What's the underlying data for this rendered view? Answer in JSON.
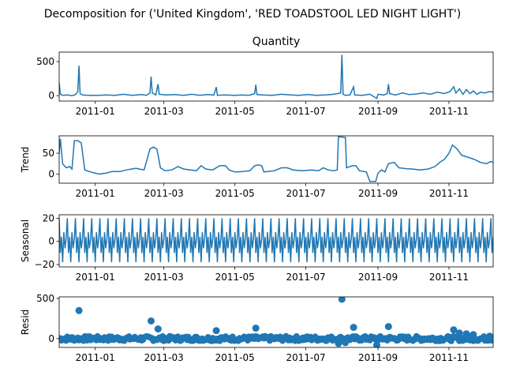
{
  "suptitle": "Decomposition for ('United Kingdom', 'RED TOADSTOOL LED NIGHT LIGHT')",
  "line_color": "#1f77b4",
  "chart_data": [
    {
      "type": "line",
      "title": "Quantity",
      "ylabel": "",
      "xlim": [
        "2010-12-01",
        "2011-12-09"
      ],
      "ylim": [
        -80,
        640
      ],
      "yticks": [
        0,
        500
      ],
      "xticks": [
        "2011-01",
        "2011-03",
        "2011-05",
        "2011-07",
        "2011-09",
        "2011-11"
      ],
      "series": [
        {
          "points": [
            [
              "2010-12-01",
              190
            ],
            [
              "2010-12-02",
              20
            ],
            [
              "2010-12-04",
              5
            ],
            [
              "2010-12-08",
              10
            ],
            [
              "2010-12-12",
              0
            ],
            [
              "2010-12-15",
              15
            ],
            [
              "2010-12-17",
              60
            ],
            [
              "2010-12-18",
              440
            ],
            [
              "2010-12-19",
              30
            ],
            [
              "2010-12-21",
              10
            ],
            [
              "2010-12-26",
              5
            ],
            [
              "2011-01-04",
              5
            ],
            [
              "2011-01-10",
              10
            ],
            [
              "2011-01-18",
              5
            ],
            [
              "2011-01-25",
              20
            ],
            [
              "2011-02-02",
              5
            ],
            [
              "2011-02-10",
              15
            ],
            [
              "2011-02-14",
              5
            ],
            [
              "2011-02-17",
              40
            ],
            [
              "2011-02-18",
              280
            ],
            [
              "2011-02-19",
              40
            ],
            [
              "2011-02-22",
              10
            ],
            [
              "2011-02-24",
              170
            ],
            [
              "2011-02-25",
              20
            ],
            [
              "2011-03-03",
              10
            ],
            [
              "2011-03-10",
              15
            ],
            [
              "2011-03-18",
              5
            ],
            [
              "2011-03-25",
              20
            ],
            [
              "2011-04-01",
              5
            ],
            [
              "2011-04-07",
              15
            ],
            [
              "2011-04-13",
              10
            ],
            [
              "2011-04-15",
              125
            ],
            [
              "2011-04-16",
              5
            ],
            [
              "2011-04-22",
              10
            ],
            [
              "2011-05-01",
              5
            ],
            [
              "2011-05-07",
              10
            ],
            [
              "2011-05-13",
              5
            ],
            [
              "2011-05-18",
              30
            ],
            [
              "2011-05-19",
              160
            ],
            [
              "2011-05-20",
              15
            ],
            [
              "2011-05-25",
              10
            ],
            [
              "2011-06-02",
              5
            ],
            [
              "2011-06-10",
              20
            ],
            [
              "2011-06-18",
              10
            ],
            [
              "2011-06-25",
              5
            ],
            [
              "2011-07-03",
              15
            ],
            [
              "2011-07-10",
              5
            ],
            [
              "2011-07-18",
              10
            ],
            [
              "2011-07-25",
              20
            ],
            [
              "2011-07-31",
              40
            ],
            [
              "2011-08-01",
              600
            ],
            [
              "2011-08-02",
              20
            ],
            [
              "2011-08-04",
              5
            ],
            [
              "2011-08-08",
              10
            ],
            [
              "2011-08-11",
              130
            ],
            [
              "2011-08-12",
              10
            ],
            [
              "2011-08-18",
              5
            ],
            [
              "2011-08-25",
              20
            ],
            [
              "2011-08-31",
              -40
            ],
            [
              "2011-09-01",
              20
            ],
            [
              "2011-09-06",
              10
            ],
            [
              "2011-09-09",
              30
            ],
            [
              "2011-09-10",
              170
            ],
            [
              "2011-09-11",
              30
            ],
            [
              "2011-09-16",
              10
            ],
            [
              "2011-09-22",
              40
            ],
            [
              "2011-09-28",
              15
            ],
            [
              "2011-10-04",
              25
            ],
            [
              "2011-10-10",
              40
            ],
            [
              "2011-10-16",
              20
            ],
            [
              "2011-10-22",
              50
            ],
            [
              "2011-10-28",
              30
            ],
            [
              "2011-11-02",
              60
            ],
            [
              "2011-11-05",
              130
            ],
            [
              "2011-11-07",
              40
            ],
            [
              "2011-11-10",
              100
            ],
            [
              "2011-11-13",
              20
            ],
            [
              "2011-11-16",
              90
            ],
            [
              "2011-11-19",
              30
            ],
            [
              "2011-11-22",
              70
            ],
            [
              "2011-11-25",
              20
            ],
            [
              "2011-11-28",
              50
            ],
            [
              "2011-12-02",
              40
            ],
            [
              "2011-12-06",
              60
            ],
            [
              "2011-12-09",
              50
            ]
          ]
        }
      ]
    },
    {
      "type": "line",
      "title": "",
      "ylabel": "Trend",
      "xlim": [
        "2010-12-01",
        "2011-12-09"
      ],
      "ylim": [
        -22,
        92
      ],
      "yticks": [
        0,
        50
      ],
      "xticks": [
        "2011-01",
        "2011-03",
        "2011-05",
        "2011-07",
        "2011-09",
        "2011-11"
      ],
      "series": [
        {
          "points": [
            [
              "2010-12-01",
              50
            ],
            [
              "2010-12-02",
              85
            ],
            [
              "2010-12-04",
              25
            ],
            [
              "2010-12-07",
              15
            ],
            [
              "2010-12-10",
              18
            ],
            [
              "2010-12-12",
              12
            ],
            [
              "2010-12-14",
              80
            ],
            [
              "2010-12-17",
              80
            ],
            [
              "2010-12-20",
              75
            ],
            [
              "2010-12-23",
              10
            ],
            [
              "2010-12-28",
              5
            ],
            [
              "2011-01-04",
              0
            ],
            [
              "2011-01-10",
              2
            ],
            [
              "2011-01-15",
              6
            ],
            [
              "2011-01-22",
              6
            ],
            [
              "2011-01-28",
              10
            ],
            [
              "2011-02-01",
              12
            ],
            [
              "2011-02-05",
              14
            ],
            [
              "2011-02-08",
              12
            ],
            [
              "2011-02-12",
              10
            ],
            [
              "2011-02-15",
              40
            ],
            [
              "2011-02-17",
              60
            ],
            [
              "2011-02-20",
              65
            ],
            [
              "2011-02-23",
              60
            ],
            [
              "2011-02-26",
              15
            ],
            [
              "2011-03-02",
              8
            ],
            [
              "2011-03-08",
              10
            ],
            [
              "2011-03-13",
              18
            ],
            [
              "2011-03-18",
              12
            ],
            [
              "2011-03-24",
              10
            ],
            [
              "2011-03-29",
              8
            ],
            [
              "2011-04-02",
              20
            ],
            [
              "2011-04-06",
              12
            ],
            [
              "2011-04-12",
              10
            ],
            [
              "2011-04-18",
              20
            ],
            [
              "2011-04-23",
              20
            ],
            [
              "2011-04-26",
              10
            ],
            [
              "2011-05-01",
              5
            ],
            [
              "2011-05-08",
              6
            ],
            [
              "2011-05-14",
              8
            ],
            [
              "2011-05-18",
              20
            ],
            [
              "2011-05-21",
              22
            ],
            [
              "2011-05-24",
              20
            ],
            [
              "2011-05-26",
              5
            ],
            [
              "2011-06-04",
              8
            ],
            [
              "2011-06-10",
              15
            ],
            [
              "2011-06-15",
              15
            ],
            [
              "2011-06-20",
              10
            ],
            [
              "2011-06-28",
              8
            ],
            [
              "2011-07-06",
              10
            ],
            [
              "2011-07-12",
              8
            ],
            [
              "2011-07-16",
              15
            ],
            [
              "2011-07-20",
              10
            ],
            [
              "2011-07-25",
              8
            ],
            [
              "2011-07-28",
              10
            ],
            [
              "2011-07-29",
              90
            ],
            [
              "2011-08-04",
              88
            ],
            [
              "2011-08-05",
              15
            ],
            [
              "2011-08-10",
              20
            ],
            [
              "2011-08-13",
              20
            ],
            [
              "2011-08-16",
              8
            ],
            [
              "2011-08-22",
              5
            ],
            [
              "2011-08-25",
              -18
            ],
            [
              "2011-08-30",
              -18
            ],
            [
              "2011-09-01",
              2
            ],
            [
              "2011-09-04",
              10
            ],
            [
              "2011-09-07",
              5
            ],
            [
              "2011-09-10",
              25
            ],
            [
              "2011-09-15",
              28
            ],
            [
              "2011-09-19",
              15
            ],
            [
              "2011-09-25",
              13
            ],
            [
              "2011-10-01",
              12
            ],
            [
              "2011-10-07",
              10
            ],
            [
              "2011-10-14",
              12
            ],
            [
              "2011-10-20",
              18
            ],
            [
              "2011-10-25",
              30
            ],
            [
              "2011-10-28",
              35
            ],
            [
              "2011-11-01",
              50
            ],
            [
              "2011-11-04",
              70
            ],
            [
              "2011-11-08",
              60
            ],
            [
              "2011-11-12",
              45
            ],
            [
              "2011-11-18",
              40
            ],
            [
              "2011-11-23",
              35
            ],
            [
              "2011-11-28",
              28
            ],
            [
              "2011-12-03",
              25
            ],
            [
              "2011-12-07",
              30
            ],
            [
              "2011-12-09",
              28
            ]
          ]
        }
      ]
    },
    {
      "type": "line",
      "title": "",
      "ylabel": "Seasonal",
      "xlim": [
        "2010-12-01",
        "2011-12-09"
      ],
      "ylim": [
        -22,
        23
      ],
      "yticks": [
        -20,
        0,
        20
      ],
      "xticks": [
        "2011-01",
        "2011-03",
        "2011-05",
        "2011-07",
        "2011-09",
        "2011-11"
      ],
      "period_days": 7,
      "weekly_pattern": [
        20,
        -10,
        4,
        -18,
        8,
        -6,
        2
      ]
    },
    {
      "type": "scatter",
      "title": "",
      "ylabel": "Resid",
      "xlim": [
        "2010-12-01",
        "2011-12-09"
      ],
      "ylim": [
        -110,
        520
      ],
      "yticks": [
        0,
        500
      ],
      "xticks": [
        "2011-01",
        "2011-03",
        "2011-05",
        "2011-07",
        "2011-09",
        "2011-11"
      ],
      "points": [
        [
          "2010-12-18",
          350
        ],
        [
          "2011-02-18",
          220
        ],
        [
          "2011-02-24",
          120
        ],
        [
          "2011-04-15",
          100
        ],
        [
          "2011-05-19",
          130
        ],
        [
          "2011-08-01",
          490
        ],
        [
          "2011-08-11",
          140
        ],
        [
          "2011-08-31",
          -80
        ],
        [
          "2011-09-10",
          150
        ],
        [
          "2011-11-05",
          110
        ],
        [
          "2011-11-10",
          70
        ],
        [
          "2011-11-16",
          60
        ],
        [
          "2011-11-22",
          50
        ],
        [
          "2011-12-06",
          30
        ],
        [
          "2011-07-29",
          -60
        ],
        [
          "2011-08-04",
          -50
        ]
      ],
      "noise_amplitude": 30
    }
  ]
}
